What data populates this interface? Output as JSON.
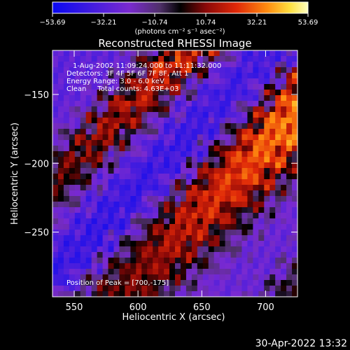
{
  "chart_data": {
    "type": "heatmap",
    "title": "Reconstructed RHESSI Image",
    "xlabel": "Heliocentric X (arcsec)",
    "ylabel": "Heliocentric Y (arcsec)",
    "xlim": [
      533,
      725
    ],
    "ylim": [
      -297,
      -118
    ],
    "x_ticks": [
      550,
      600,
      650,
      700
    ],
    "x_tick_labels": [
      "550",
      "600",
      "650",
      "700"
    ],
    "y_ticks": [
      -150,
      -200,
      -250
    ],
    "y_tick_labels": [
      "−150",
      "−200",
      "−250"
    ],
    "colorbar": {
      "min": -53.69,
      "max": 53.69,
      "tick_values": [
        -53.69,
        -32.21,
        -10.74,
        10.74,
        32.21,
        53.69
      ],
      "tick_labels": [
        "−53.69",
        "−32.21",
        "−10.74",
        "10.74",
        "32.21",
        "53.69"
      ],
      "unit_label": "(photons cm⁻² s⁻¹ asec⁻²)"
    },
    "annotations": {
      "time_range": "1-Aug-2002 11:09:24.000 to 11:11:32.000",
      "detectors": "Detectors: 3F 4F 5F 6F 7F 8F, Att 1",
      "energy_range": "Energy Range: 3.0 - 6.0 keV",
      "method_counts": "Clean     Total counts: 4.63E+03",
      "peak": "Position of Peak = [700,-175]"
    },
    "peak_position": [
      700,
      -175
    ]
  },
  "timestamp": "30-Apr-2022 13:32"
}
